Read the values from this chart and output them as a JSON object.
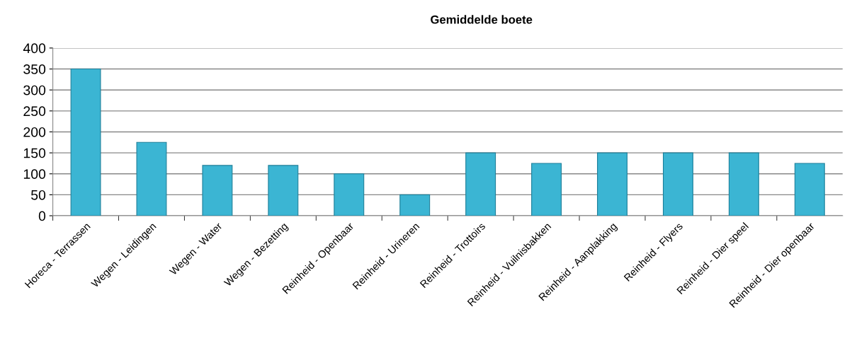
{
  "chart_data": {
    "type": "bar",
    "title": "Gemiddelde boete",
    "categories": [
      "Horeca - Terrassen",
      "Wegen - Leidingen",
      "Wegen - Water",
      "Wegen - Bezetting",
      "Reinheid - Openbaar",
      "Reinheid - Urineren",
      "Reinheid - Trottoirs",
      "Reinheid - Vuilnisbakken",
      "Reinheid - Aanplakking",
      "Reinheid - Flyers",
      "Reinheid - Dier speel",
      "Reinheid - Dier openbaar"
    ],
    "values": [
      350,
      175,
      120,
      120,
      100,
      50,
      150,
      125,
      150,
      150,
      150,
      125
    ],
    "color": "#3bb5d3",
    "ylim": [
      0,
      400
    ],
    "yticks": [
      0,
      50,
      100,
      150,
      200,
      250,
      300,
      350,
      400
    ],
    "grid": "y"
  }
}
